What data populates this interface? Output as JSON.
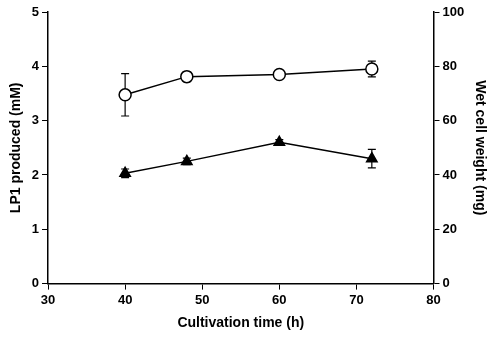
{
  "chart_data": {
    "type": "line",
    "x_label": "Cultivation time (h)",
    "y_label": "LP1 produced (mM)",
    "y2_label": "Wet cell weight (mg)",
    "x": [
      40,
      48,
      60,
      72
    ],
    "xlim": [
      30,
      80
    ],
    "xticks": [
      30,
      40,
      50,
      60,
      70,
      80
    ],
    "ylim": [
      0,
      5
    ],
    "yticks": [
      0,
      1,
      2,
      3,
      4,
      5
    ],
    "y2lim": [
      0,
      100
    ],
    "y2ticks": [
      0,
      20,
      40,
      60,
      80,
      100
    ],
    "grid": false,
    "series": [
      {
        "color": "#000000",
        "marker": "open-circle",
        "line_style": "solid",
        "axis": "y2",
        "values": [
          69.5,
          76.2,
          77.0,
          79.0
        ],
        "errors": [
          7.8,
          1.8,
          1.4,
          2.9
        ]
      },
      {
        "color": "#000000",
        "marker": "triangle",
        "line_style": "solid",
        "values": [
          2.03,
          2.25,
          2.6,
          2.3
        ],
        "errors": [
          0.08,
          0.06,
          0.05,
          0.17
        ]
      }
    ]
  }
}
